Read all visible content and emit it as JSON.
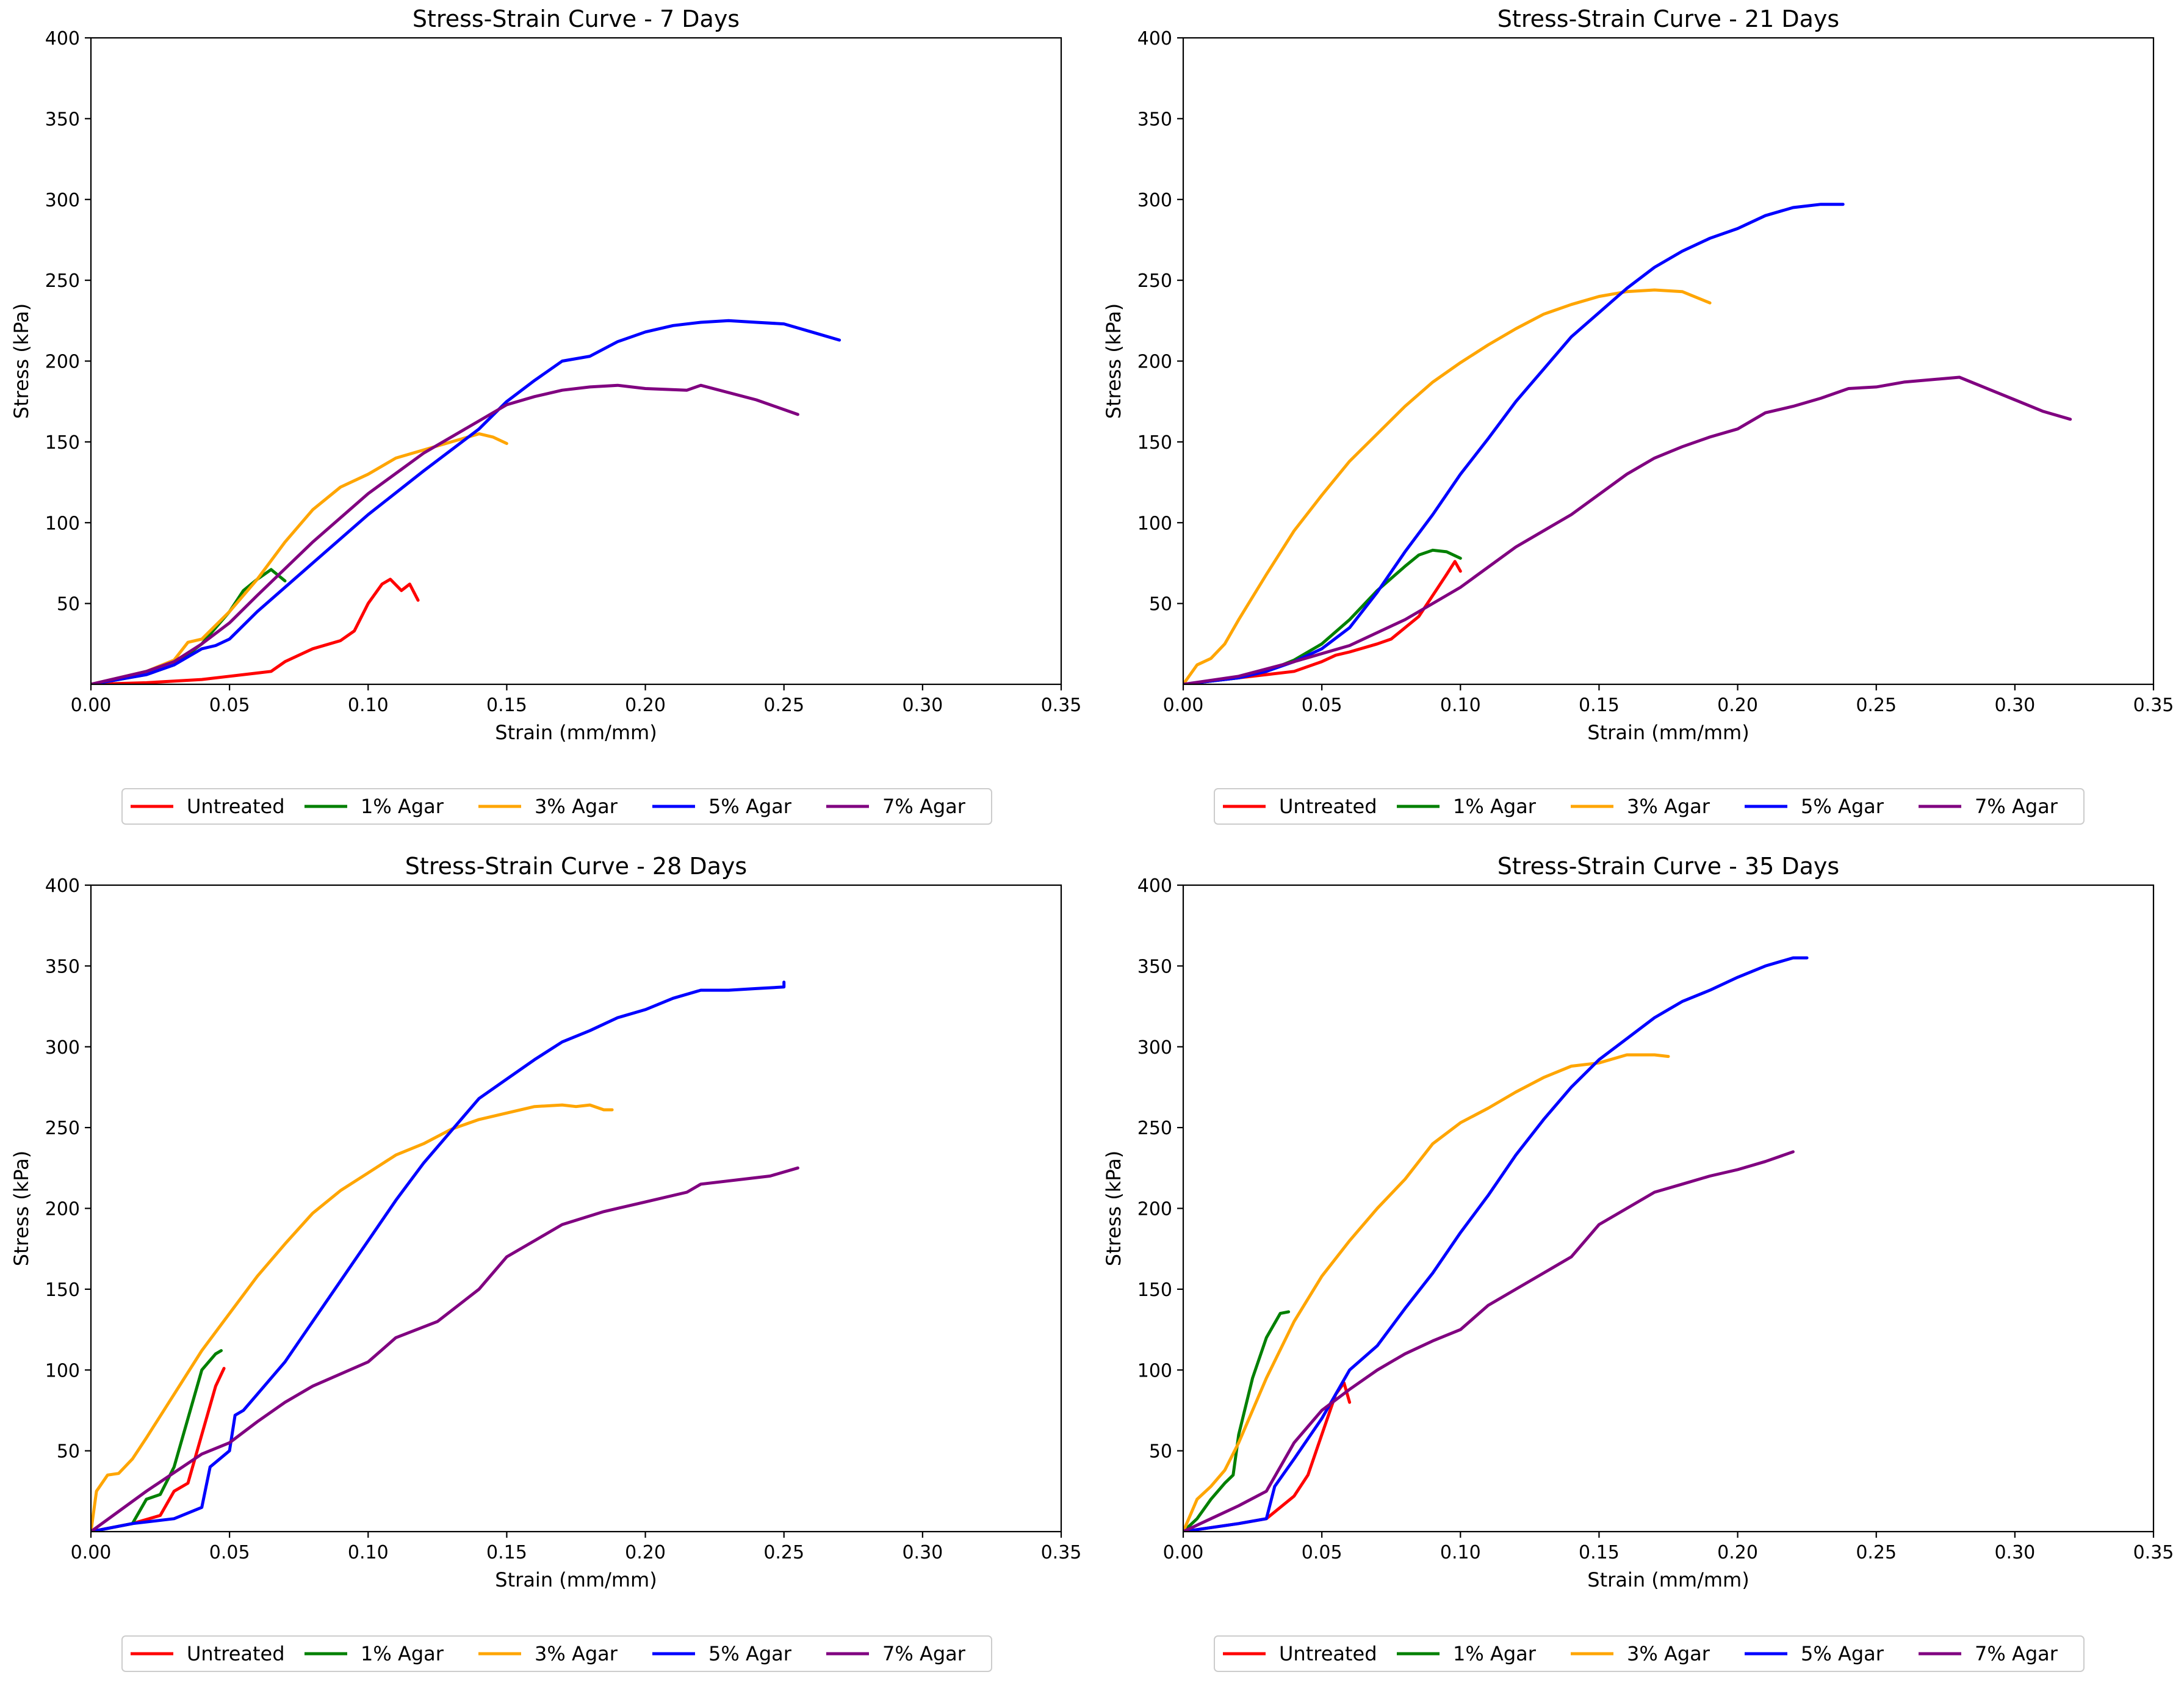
{
  "colors": {
    "Untreated": "#ff0000",
    "1% Agar": "#008000",
    "3% Agar": "#ffa500",
    "5% Agar": "#0000ff",
    "7% Agar": "#800080"
  },
  "chart_data": [
    {
      "type": "line",
      "title": "Stress-Strain Curve - 7 Days",
      "xlabel": "Strain (mm/mm)",
      "ylabel": "Stress (kPa)",
      "xlim": [
        0,
        0.35
      ],
      "ylim": [
        0,
        400
      ],
      "xticks": [
        "0.00",
        "0.05",
        "0.10",
        "0.15",
        "0.20",
        "0.25",
        "0.30",
        "0.35"
      ],
      "yticks": [
        "50",
        "100",
        "150",
        "200",
        "250",
        "300",
        "350",
        "400"
      ],
      "legend": [
        "Untreated",
        "1% Agar",
        "3% Agar",
        "5% Agar",
        "7% Agar"
      ],
      "series": [
        {
          "name": "Untreated",
          "x": [
            0,
            0.02,
            0.03,
            0.04,
            0.05,
            0.06,
            0.065,
            0.07,
            0.08,
            0.09,
            0.095,
            0.1,
            0.105,
            0.108,
            0.112,
            0.115,
            0.118
          ],
          "y": [
            0,
            1,
            2,
            3,
            5,
            7,
            8,
            14,
            22,
            27,
            33,
            50,
            62,
            65,
            58,
            62,
            52
          ]
        },
        {
          "name": "1% Agar",
          "x": [
            0,
            0.01,
            0.02,
            0.03,
            0.04,
            0.05,
            0.055,
            0.06,
            0.065,
            0.07
          ],
          "y": [
            0,
            3,
            6,
            12,
            25,
            45,
            58,
            65,
            71,
            64
          ]
        },
        {
          "name": "3% Agar",
          "x": [
            0,
            0.02,
            0.03,
            0.035,
            0.04,
            0.05,
            0.06,
            0.07,
            0.08,
            0.09,
            0.1,
            0.11,
            0.12,
            0.13,
            0.14,
            0.145,
            0.15
          ],
          "y": [
            0,
            8,
            15,
            26,
            28,
            45,
            65,
            88,
            108,
            122,
            130,
            140,
            145,
            150,
            155,
            153,
            149
          ]
        },
        {
          "name": "5% Agar",
          "x": [
            0,
            0.02,
            0.03,
            0.04,
            0.045,
            0.05,
            0.06,
            0.08,
            0.1,
            0.12,
            0.14,
            0.15,
            0.16,
            0.17,
            0.18,
            0.19,
            0.2,
            0.21,
            0.22,
            0.23,
            0.24,
            0.25,
            0.26,
            0.27
          ],
          "y": [
            0,
            6,
            12,
            22,
            24,
            28,
            45,
            75,
            105,
            132,
            158,
            175,
            188,
            200,
            203,
            212,
            218,
            222,
            224,
            225,
            224,
            223,
            218,
            213
          ]
        },
        {
          "name": "7% Agar",
          "x": [
            0,
            0.02,
            0.03,
            0.04,
            0.05,
            0.06,
            0.08,
            0.1,
            0.12,
            0.14,
            0.15,
            0.16,
            0.17,
            0.18,
            0.19,
            0.2,
            0.215,
            0.22,
            0.24,
            0.255
          ],
          "y": [
            0,
            8,
            14,
            25,
            38,
            55,
            88,
            118,
            143,
            163,
            173,
            178,
            182,
            184,
            185,
            183,
            182,
            185,
            176,
            167
          ]
        }
      ]
    },
    {
      "type": "line",
      "title": "Stress-Strain Curve - 21 Days",
      "xlabel": "Strain (mm/mm)",
      "ylabel": "Stress (kPa)",
      "xlim": [
        0,
        0.35
      ],
      "ylim": [
        0,
        400
      ],
      "xticks": [
        "0.00",
        "0.05",
        "0.10",
        "0.15",
        "0.20",
        "0.25",
        "0.30",
        "0.35"
      ],
      "yticks": [
        "50",
        "100",
        "150",
        "200",
        "250",
        "300",
        "350",
        "400"
      ],
      "legend": [
        "Untreated",
        "1% Agar",
        "3% Agar",
        "5% Agar",
        "7% Agar"
      ],
      "series": [
        {
          "name": "Untreated",
          "x": [
            0,
            0.02,
            0.03,
            0.04,
            0.05,
            0.055,
            0.06,
            0.07,
            0.075,
            0.08,
            0.085,
            0.09,
            0.095,
            0.098,
            0.1
          ],
          "y": [
            0,
            4,
            6,
            8,
            14,
            18,
            20,
            25,
            28,
            35,
            42,
            55,
            68,
            76,
            70
          ]
        },
        {
          "name": "1% Agar",
          "x": [
            0,
            0.02,
            0.03,
            0.04,
            0.05,
            0.06,
            0.07,
            0.08,
            0.085,
            0.09,
            0.095,
            0.1
          ],
          "y": [
            0,
            4,
            8,
            15,
            25,
            40,
            58,
            73,
            80,
            83,
            82,
            78
          ]
        },
        {
          "name": "3% Agar",
          "x": [
            0,
            0.005,
            0.01,
            0.015,
            0.02,
            0.03,
            0.04,
            0.05,
            0.06,
            0.07,
            0.08,
            0.09,
            0.1,
            0.11,
            0.12,
            0.13,
            0.14,
            0.15,
            0.16,
            0.17,
            0.18,
            0.19
          ],
          "y": [
            0,
            12,
            16,
            25,
            40,
            68,
            95,
            117,
            138,
            155,
            172,
            187,
            199,
            210,
            220,
            229,
            235,
            240,
            243,
            244,
            243,
            236
          ]
        },
        {
          "name": "5% Agar",
          "x": [
            0,
            0.02,
            0.03,
            0.04,
            0.05,
            0.06,
            0.07,
            0.08,
            0.09,
            0.1,
            0.11,
            0.12,
            0.13,
            0.14,
            0.15,
            0.16,
            0.17,
            0.18,
            0.19,
            0.2,
            0.21,
            0.22,
            0.23,
            0.238
          ],
          "y": [
            0,
            4,
            8,
            14,
            22,
            35,
            57,
            82,
            105,
            130,
            152,
            175,
            195,
            215,
            230,
            245,
            258,
            268,
            276,
            282,
            290,
            295,
            297,
            297
          ]
        },
        {
          "name": "7% Agar",
          "x": [
            0,
            0.02,
            0.04,
            0.06,
            0.08,
            0.1,
            0.12,
            0.14,
            0.16,
            0.17,
            0.18,
            0.19,
            0.2,
            0.21,
            0.22,
            0.23,
            0.24,
            0.25,
            0.26,
            0.28,
            0.3,
            0.31,
            0.32
          ],
          "y": [
            0,
            5,
            14,
            24,
            40,
            60,
            85,
            105,
            130,
            140,
            147,
            153,
            158,
            168,
            172,
            177,
            183,
            184,
            187,
            190,
            176,
            169,
            164
          ]
        }
      ]
    },
    {
      "type": "line",
      "title": "Stress-Strain Curve - 28 Days",
      "xlabel": "Strain (mm/mm)",
      "ylabel": "Stress (kPa)",
      "xlim": [
        0,
        0.35
      ],
      "ylim": [
        0,
        400
      ],
      "xticks": [
        "0.00",
        "0.05",
        "0.10",
        "0.15",
        "0.20",
        "0.25",
        "0.30",
        "0.35"
      ],
      "yticks": [
        "50",
        "100",
        "150",
        "200",
        "250",
        "300",
        "350",
        "400"
      ],
      "legend": [
        "Untreated",
        "1% Agar",
        "3% Agar",
        "5% Agar",
        "7% Agar"
      ],
      "series": [
        {
          "name": "Untreated",
          "x": [
            0,
            0.015,
            0.025,
            0.03,
            0.035,
            0.04,
            0.045,
            0.048
          ],
          "y": [
            0,
            5,
            10,
            25,
            30,
            60,
            90,
            101
          ]
        },
        {
          "name": "1% Agar",
          "x": [
            0,
            0.015,
            0.02,
            0.025,
            0.03,
            0.035,
            0.04,
            0.045,
            0.047
          ],
          "y": [
            0,
            5,
            20,
            23,
            40,
            70,
            100,
            110,
            112
          ]
        },
        {
          "name": "3% Agar",
          "x": [
            0,
            0.002,
            0.006,
            0.01,
            0.015,
            0.02,
            0.03,
            0.04,
            0.05,
            0.06,
            0.07,
            0.08,
            0.09,
            0.1,
            0.11,
            0.12,
            0.13,
            0.14,
            0.15,
            0.16,
            0.17,
            0.175,
            0.18,
            0.185,
            0.188
          ],
          "y": [
            0,
            25,
            35,
            36,
            45,
            58,
            85,
            112,
            135,
            158,
            178,
            197,
            211,
            222,
            233,
            240,
            249,
            255,
            259,
            263,
            264,
            263,
            264,
            261,
            261
          ]
        },
        {
          "name": "5% Agar",
          "x": [
            0,
            0.015,
            0.03,
            0.04,
            0.043,
            0.05,
            0.052,
            0.055,
            0.06,
            0.07,
            0.08,
            0.09,
            0.1,
            0.11,
            0.12,
            0.13,
            0.14,
            0.15,
            0.16,
            0.17,
            0.18,
            0.19,
            0.2,
            0.21,
            0.22,
            0.23,
            0.24,
            0.25,
            0.25
          ],
          "y": [
            0,
            5,
            8,
            15,
            40,
            50,
            72,
            75,
            85,
            105,
            130,
            155,
            180,
            205,
            228,
            248,
            268,
            280,
            292,
            303,
            310,
            318,
            323,
            330,
            335,
            335,
            336,
            337,
            340
          ]
        },
        {
          "name": "7% Agar",
          "x": [
            0,
            0.02,
            0.04,
            0.05,
            0.06,
            0.07,
            0.08,
            0.1,
            0.11,
            0.125,
            0.14,
            0.15,
            0.16,
            0.17,
            0.185,
            0.2,
            0.215,
            0.22,
            0.245,
            0.255
          ],
          "y": [
            0,
            25,
            48,
            55,
            68,
            80,
            90,
            105,
            120,
            130,
            150,
            170,
            180,
            190,
            198,
            204,
            210,
            215,
            220,
            225
          ]
        }
      ]
    },
    {
      "type": "line",
      "title": "Stress-Strain Curve - 35 Days",
      "xlabel": "Strain (mm/mm)",
      "ylabel": "Stress (kPa)",
      "xlim": [
        0,
        0.35
      ],
      "ylim": [
        0,
        400
      ],
      "xticks": [
        "0.00",
        "0.05",
        "0.10",
        "0.15",
        "0.20",
        "0.25",
        "0.30",
        "0.35"
      ],
      "yticks": [
        "50",
        "100",
        "150",
        "200",
        "250",
        "300",
        "350",
        "400"
      ],
      "legend": [
        "Untreated",
        "1% Agar",
        "3% Agar",
        "5% Agar",
        "7% Agar"
      ],
      "series": [
        {
          "name": "Untreated",
          "x": [
            0,
            0.02,
            0.03,
            0.035,
            0.04,
            0.045,
            0.05,
            0.055,
            0.058,
            0.06
          ],
          "y": [
            0,
            5,
            8,
            15,
            22,
            35,
            60,
            85,
            92,
            80
          ]
        },
        {
          "name": "1% Agar",
          "x": [
            0,
            0.005,
            0.01,
            0.015,
            0.018,
            0.02,
            0.025,
            0.03,
            0.035,
            0.038
          ],
          "y": [
            0,
            8,
            20,
            30,
            35,
            60,
            95,
            120,
            135,
            136
          ]
        },
        {
          "name": "3% Agar",
          "x": [
            0,
            0.005,
            0.01,
            0.015,
            0.02,
            0.03,
            0.04,
            0.05,
            0.06,
            0.07,
            0.08,
            0.09,
            0.1,
            0.11,
            0.12,
            0.13,
            0.14,
            0.15,
            0.16,
            0.17,
            0.175
          ],
          "y": [
            0,
            20,
            28,
            38,
            55,
            95,
            130,
            158,
            180,
            200,
            218,
            240,
            253,
            262,
            272,
            281,
            288,
            290,
            295,
            295,
            294
          ]
        },
        {
          "name": "5% Agar",
          "x": [
            0,
            0.02,
            0.03,
            0.033,
            0.04,
            0.05,
            0.06,
            0.07,
            0.08,
            0.09,
            0.1,
            0.11,
            0.12,
            0.13,
            0.14,
            0.15,
            0.16,
            0.17,
            0.18,
            0.19,
            0.2,
            0.21,
            0.22,
            0.225
          ],
          "y": [
            0,
            5,
            8,
            28,
            45,
            70,
            100,
            115,
            138,
            160,
            185,
            208,
            233,
            255,
            275,
            292,
            305,
            318,
            328,
            335,
            343,
            350,
            355,
            355
          ]
        },
        {
          "name": "7% Agar",
          "x": [
            0,
            0.01,
            0.02,
            0.03,
            0.04,
            0.05,
            0.06,
            0.07,
            0.08,
            0.09,
            0.1,
            0.11,
            0.12,
            0.13,
            0.14,
            0.15,
            0.16,
            0.17,
            0.18,
            0.19,
            0.2,
            0.21,
            0.22
          ],
          "y": [
            0,
            8,
            16,
            25,
            55,
            75,
            88,
            100,
            110,
            118,
            125,
            140,
            150,
            160,
            170,
            190,
            200,
            210,
            215,
            220,
            224,
            229,
            235
          ]
        }
      ]
    }
  ]
}
